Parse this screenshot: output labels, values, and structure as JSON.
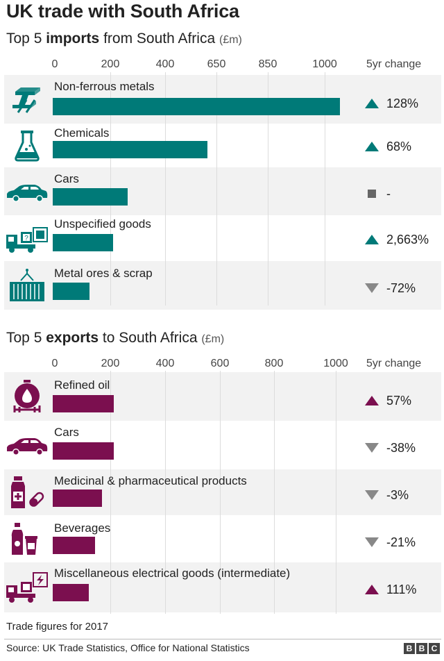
{
  "title": "UK trade with South Africa",
  "colors": {
    "imports": "#007a78",
    "exports": "#7b0f4f",
    "neutral": "#888888",
    "shade": "#f2f2f2"
  },
  "chart_data": [
    {
      "type": "bar",
      "orientation": "horizontal",
      "heading": {
        "prefix": "Top 5 ",
        "bold": "imports",
        "suffix": " from South Africa ",
        "unit": "(£m)"
      },
      "change_header": "5yr change",
      "x_ticks": [
        "0",
        "200",
        "400",
        "650",
        "850",
        "1000"
      ],
      "xlim": [
        0,
        1050
      ],
      "categories": [
        "Non-ferrous metals",
        "Chemicals",
        "Cars",
        "Unspecified goods",
        "Metal ores & scrap"
      ],
      "values": [
        1050,
        565,
        275,
        220,
        135
      ],
      "changes": [
        {
          "text": "128%",
          "direction": "up"
        },
        {
          "text": "68%",
          "direction": "up"
        },
        {
          "text": "-",
          "direction": "none"
        },
        {
          "text": "2,663%",
          "direction": "up"
        },
        {
          "text": "-72%",
          "direction": "down"
        }
      ],
      "icons": [
        "metal-beam-icon",
        "flask-icon",
        "car-icon",
        "truck-unknown-goods-icon",
        "container-icon"
      ]
    },
    {
      "type": "bar",
      "orientation": "horizontal",
      "heading": {
        "prefix": "Top 5 ",
        "bold": "exports",
        "suffix": " to South Africa ",
        "unit": "(£m)"
      },
      "change_header": "5yr change",
      "x_ticks": [
        "0",
        "200",
        "400",
        "600",
        "800",
        "1000"
      ],
      "xlim": [
        0,
        1000
      ],
      "categories": [
        "Refined oil",
        "Cars",
        "Medicinal & pharmaceutical products",
        "Beverages",
        "Miscellaneous electrical goods (intermediate)"
      ],
      "values": [
        218,
        218,
        175,
        152,
        130
      ],
      "changes": [
        {
          "text": "57%",
          "direction": "up"
        },
        {
          "text": "-38%",
          "direction": "down"
        },
        {
          "text": "-3%",
          "direction": "down"
        },
        {
          "text": "-21%",
          "direction": "down"
        },
        {
          "text": "111%",
          "direction": "up"
        }
      ],
      "icons": [
        "oil-tank-icon",
        "car-icon",
        "medicine-icon",
        "beverages-icon",
        "truck-electrical-icon"
      ]
    }
  ],
  "footnote": "Trade figures for 2017",
  "source": "Source: UK Trade Statistics, Office for National Statistics",
  "logo": [
    "B",
    "B",
    "C"
  ]
}
